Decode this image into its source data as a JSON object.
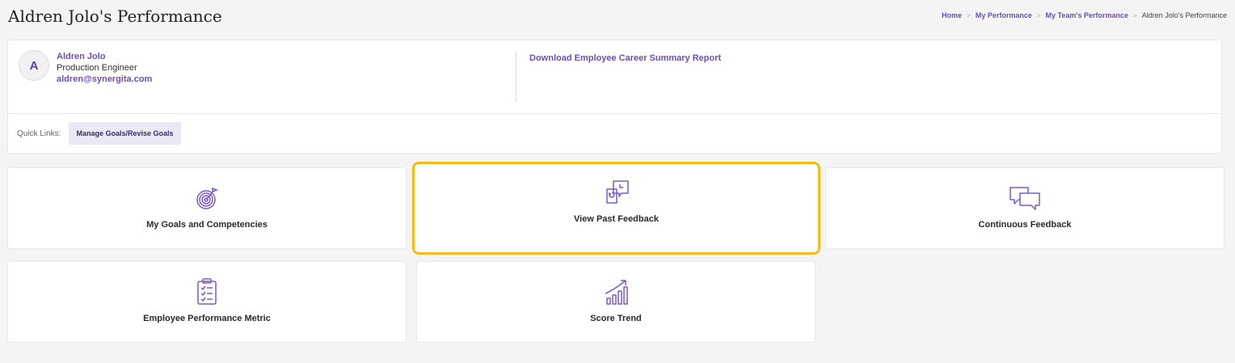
{
  "page": {
    "title": "Aldren Jolo's Performance"
  },
  "breadcrumb": {
    "items": [
      {
        "label": "Home"
      },
      {
        "label": "My Performance"
      },
      {
        "label": "My Team's Performance"
      },
      {
        "label": "Aldren Jolo's Performance"
      }
    ],
    "separator": ">"
  },
  "employee": {
    "initial": "A",
    "name": "Aldren Jolo",
    "role": "Production Engineer",
    "email": "aldren@synergita.com"
  },
  "download_link": "Download Employee Career Summary Report",
  "quick_links": {
    "label": "Quick Links:",
    "items": [
      {
        "label": "Manage Goals/Revise Goals"
      }
    ]
  },
  "tiles": [
    {
      "label": "My Goals and Competencies",
      "icon": "target-icon"
    },
    {
      "label": "View Past Feedback",
      "icon": "past-feedback-icon",
      "highlighted": true
    },
    {
      "label": "Continuous Feedback",
      "icon": "chat-bubbles-icon"
    },
    {
      "label": "Employee Performance Metric",
      "icon": "clipboard-checklist-icon"
    },
    {
      "label": "Score Trend",
      "icon": "trend-chart-icon"
    }
  ],
  "colors": {
    "accent": "#6b4fbb",
    "highlight": "#f2bd1c",
    "background": "#f4f4f5"
  }
}
